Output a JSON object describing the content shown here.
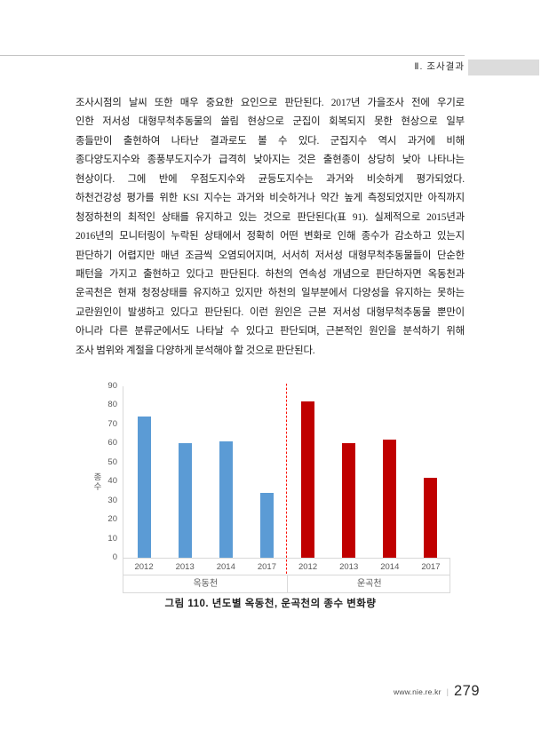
{
  "header": {
    "section_label": "Ⅱ. 조사결과"
  },
  "body": {
    "lines": [
      "조사시점의 날씨 또한 매우 중요한 요인으로 판단된다. 2017년 가을조사 전에 우기로",
      "인한 저서성 대형무척추동물의 쓸림 현상으로 군집이 회복되지 못한 현상으로 일부",
      "종들만이 출현하여 나타난 결과로도 볼 수 있다. 군집지수 역시 과거에 비해",
      "종다양도지수와 종풍부도지수가 급격히 낮아지는 것은 출현종이 상당히 낮아 나타나는",
      "현상이다. 그에 반에 우점도지수와 균등도지수는 과거와 비슷하게 평가되었다.",
      "하천건강성 평가를 위한 KSI 지수는 과거와 비슷하거나 약간 높게 측정되었지만 아직까지",
      "청정하천의 최적인 상태를 유지하고 있는 것으로 판단된다(표 91). 실제적으로 2015년과",
      "2016년의 모니터링이 누락된 상태에서 정확히 어떤 변화로 인해 종수가 감소하고 있는지",
      "판단하기 어렵지만 매년 조금씩 오염되어지며, 서서히 저서성 대형무척추동물들이 단순한",
      "패턴을 가지고 출현하고 있다고 판단된다. 하천의 연속성 개념으로 판단하자면 옥동천과",
      "운곡천은 현재 청정상태를 유지하고 있지만 하천의 일부분에서 다양성을 유지하는 못하는",
      "교란원인이 발생하고 있다고 판단된다. 이런 원인은 근본 저서성 대형무척추동물 뿐만이",
      "아니라 다른 분류군에서도 나타날 수 있다고 판단되며, 근본적인 원인을 분석하기 위해",
      "조사 범위와 계절을 다양하게 분석해야 할 것으로 판단된다."
    ]
  },
  "figure": {
    "caption": "그림 110. 년도별 옥동천, 운곡천의 종수 변화량"
  },
  "footer": {
    "site": "www.nie.re.kr",
    "separator": "|",
    "page_number": "279"
  },
  "chart_data": {
    "type": "bar",
    "title": "",
    "xlabel": "",
    "ylabel": "종수",
    "ylim": [
      0,
      90
    ],
    "yticks": [
      0,
      10,
      20,
      30,
      40,
      50,
      60,
      70,
      80,
      90
    ],
    "grid": false,
    "legend": false,
    "categories": [
      "2012",
      "2013",
      "2014",
      "2017"
    ],
    "series": [
      {
        "name": "옥동천",
        "color": "#5B9BD5",
        "values": [
          74,
          60,
          61,
          34
        ]
      },
      {
        "name": "운곡천",
        "color": "#C00000",
        "values": [
          82,
          60,
          62,
          42
        ]
      }
    ],
    "separator_line": {
      "style": "dashed",
      "color": "#FB0D00",
      "position": "between-groups"
    }
  },
  "colors": {
    "bar_blue": "#5B9BD5",
    "bar_red": "#C00000",
    "axis_line": "#D9D9D9",
    "tick_text": "#595959",
    "header_box": "#DCDCDC"
  }
}
